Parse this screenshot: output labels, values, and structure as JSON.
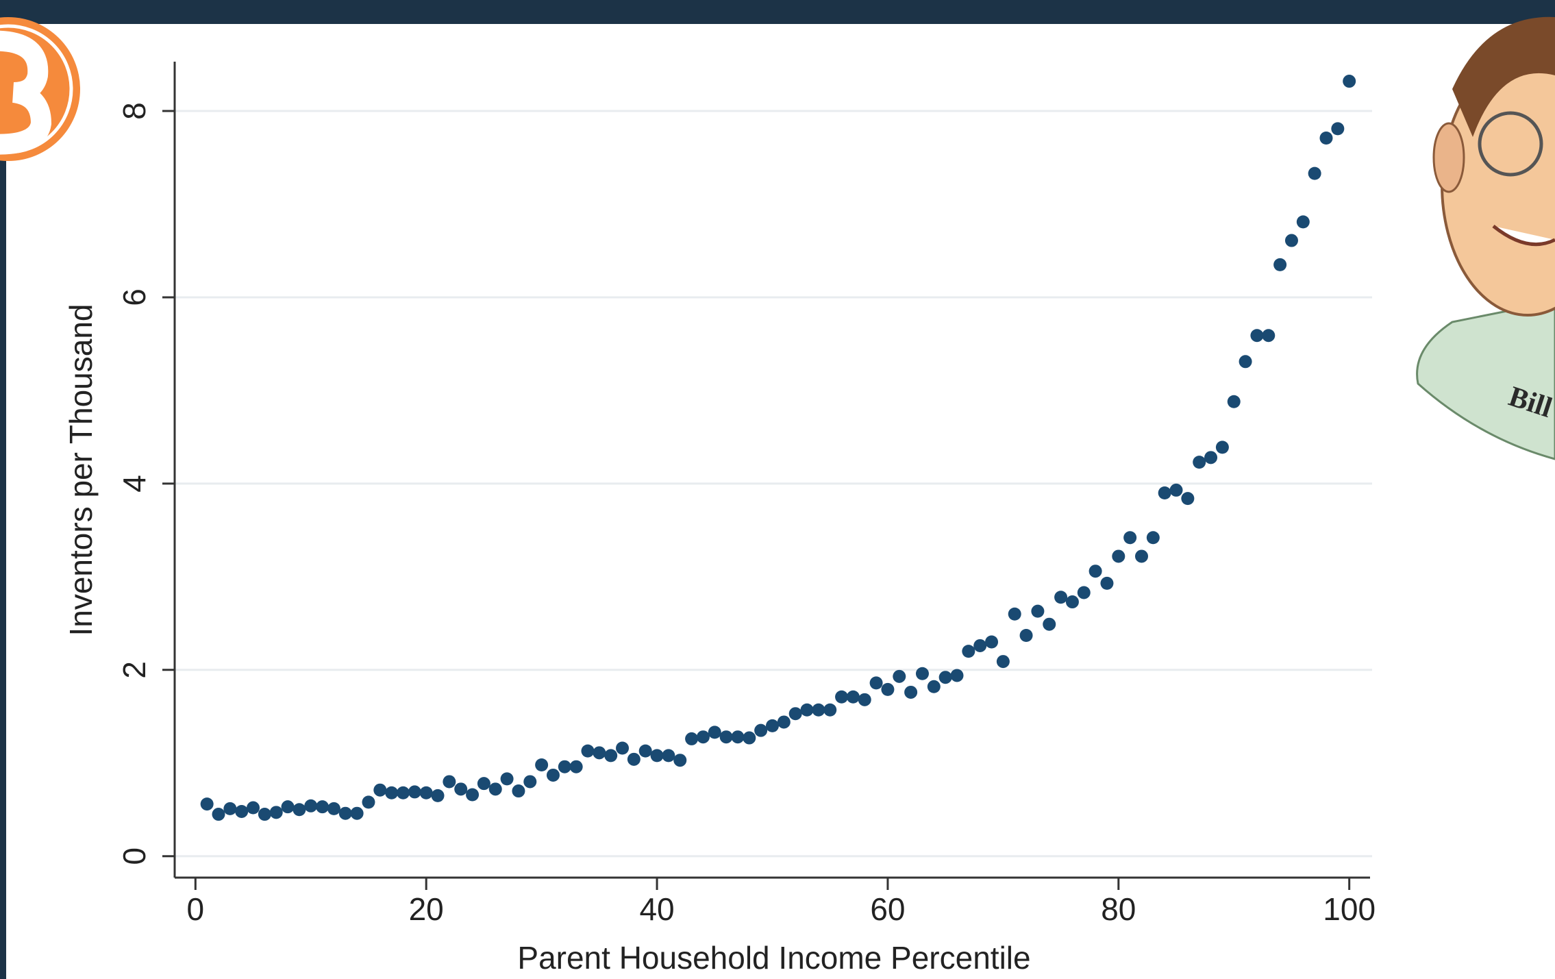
{
  "chart_data": {
    "type": "scatter",
    "xlabel": "Parent Household Income Percentile",
    "ylabel": "Inventors per Thousand",
    "annotation": "Bill Gates",
    "color": "#1a4a72",
    "grid": true,
    "xlim": [
      -1.8,
      101.8
    ],
    "ylim": [
      -0.23,
      8.53
    ],
    "xticks": [
      0,
      20,
      40,
      60,
      80,
      100
    ],
    "yticks": [
      0,
      2,
      4,
      6,
      8
    ],
    "x": [
      1,
      2,
      3,
      4,
      5,
      6,
      7,
      8,
      9,
      10,
      11,
      12,
      13,
      14,
      15,
      16,
      17,
      18,
      19,
      20,
      21,
      22,
      23,
      24,
      25,
      26,
      27,
      28,
      29,
      30,
      31,
      32,
      33,
      34,
      35,
      36,
      37,
      38,
      39,
      40,
      41,
      42,
      43,
      44,
      45,
      46,
      47,
      48,
      49,
      50,
      51,
      52,
      53,
      54,
      55,
      56,
      57,
      58,
      59,
      60,
      61,
      62,
      63,
      64,
      65,
      66,
      67,
      68,
      69,
      70,
      71,
      72,
      73,
      74,
      75,
      76,
      77,
      78,
      79,
      80,
      81,
      82,
      83,
      84,
      85,
      86,
      87,
      88,
      89,
      90,
      91,
      92,
      93,
      94,
      95,
      96,
      97,
      98,
      99,
      100
    ],
    "values": [
      0.56,
      0.45,
      0.51,
      0.48,
      0.52,
      0.45,
      0.47,
      0.53,
      0.5,
      0.54,
      0.53,
      0.51,
      0.46,
      0.46,
      0.58,
      0.71,
      0.68,
      0.68,
      0.69,
      0.68,
      0.65,
      0.8,
      0.72,
      0.66,
      0.78,
      0.72,
      0.83,
      0.7,
      0.8,
      0.98,
      0.87,
      0.96,
      0.96,
      1.13,
      1.11,
      1.08,
      1.16,
      1.04,
      1.13,
      1.08,
      1.08,
      1.03,
      1.26,
      1.28,
      1.33,
      1.28,
      1.28,
      1.27,
      1.35,
      1.4,
      1.44,
      1.53,
      1.57,
      1.57,
      1.57,
      1.71,
      1.71,
      1.68,
      1.86,
      1.79,
      1.93,
      1.76,
      1.96,
      1.82,
      1.92,
      1.94,
      2.2,
      2.26,
      2.3,
      2.09,
      2.6,
      2.37,
      2.63,
      2.49,
      2.78,
      2.73,
      2.83,
      3.06,
      2.93,
      3.22,
      3.42,
      3.22,
      3.42,
      3.9,
      3.93,
      3.84,
      4.23,
      4.28,
      4.39,
      4.88,
      5.31,
      5.59,
      5.59,
      6.35,
      6.61,
      6.81,
      7.33,
      7.71,
      7.81,
      8.32
    ]
  }
}
